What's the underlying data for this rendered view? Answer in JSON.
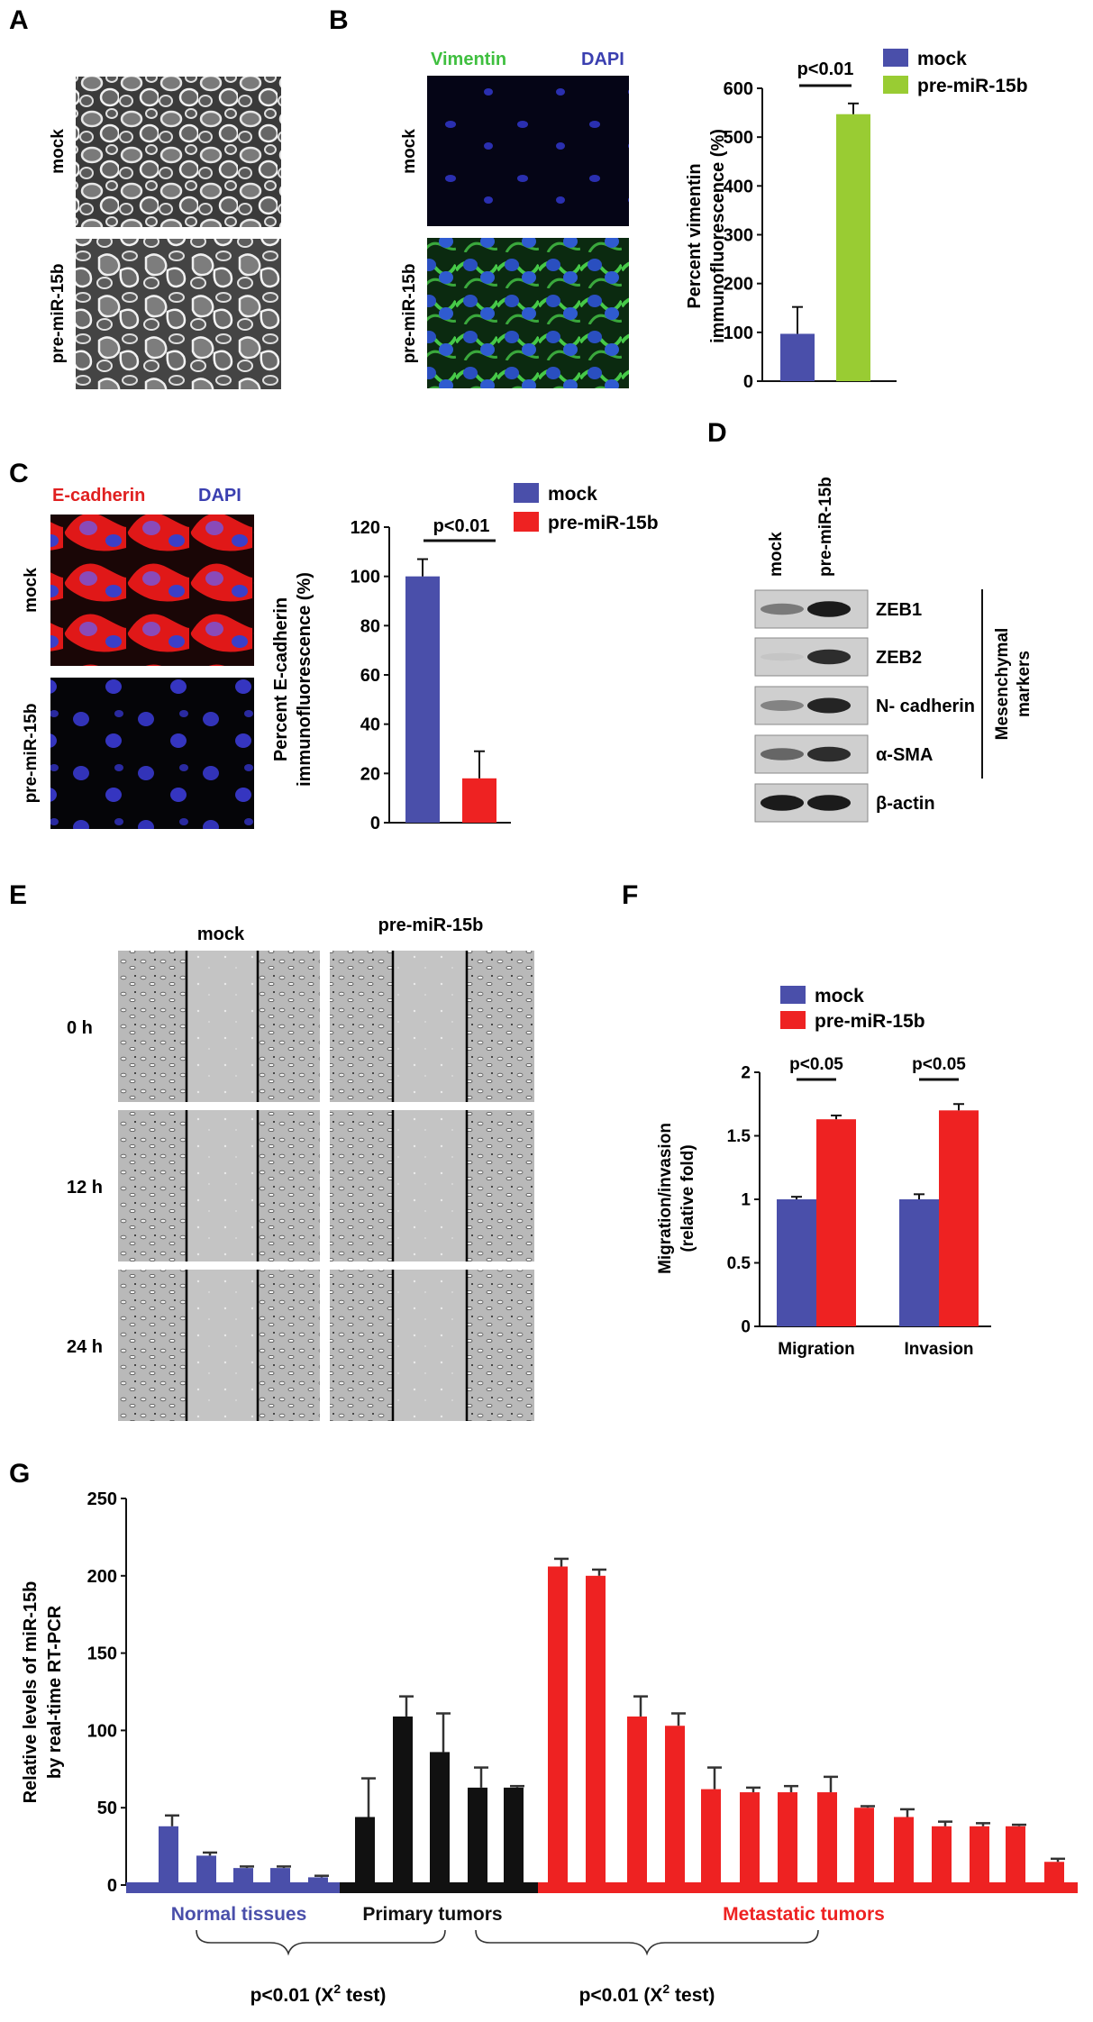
{
  "panels": {
    "A": {
      "letter": "A",
      "rows": [
        "mock",
        "pre-miR-15b"
      ]
    },
    "B": {
      "letter": "B",
      "stain_green": "Vimentin",
      "stain_blue": "DAPI",
      "rows": [
        "mock",
        "pre-miR-15b"
      ],
      "colors": {
        "mock": "#4a4faa",
        "treated": "#99cc33"
      }
    },
    "C": {
      "letter": "C",
      "stain_red": "E-cadherin",
      "stain_blue": "DAPI",
      "rows": [
        "mock",
        "pre-miR-15b"
      ],
      "colors": {
        "mock": "#4a4faa",
        "treated": "#ee2222"
      }
    },
    "D": {
      "letter": "D",
      "lanes": [
        "mock",
        "pre-miR-15b"
      ],
      "bands": [
        "ZEB1",
        "ZEB2",
        "N- cadherin",
        "α-SMA",
        "β-actin"
      ],
      "bracket_label_line1": "Mesenchymal",
      "bracket_label_line2": "markers"
    },
    "E": {
      "letter": "E",
      "columns": [
        "mock",
        "pre-miR-15b"
      ],
      "rows": [
        "0 h",
        "12 h",
        "24 h"
      ]
    },
    "F": {
      "letter": "F",
      "colors": {
        "mock": "#4a4faa",
        "treated": "#ee2222"
      }
    },
    "G": {
      "letter": "G",
      "group_labels": [
        "Normal tissues",
        "Primary tumors",
        "Metastatic tumors"
      ],
      "group_colors": [
        "#4a4faa",
        "#111111",
        "#ee2222"
      ],
      "test_label_1": "p<0.01 (X",
      "test_label_2": "p<0.01 (X",
      "test_sup": "2",
      "test_suffix": " test)"
    }
  },
  "chart_data": [
    {
      "id": "B",
      "type": "bar",
      "categories": [
        "mock",
        "pre-miR-15b"
      ],
      "values": [
        97,
        547
      ],
      "errors": [
        55,
        22
      ],
      "ylabel": "Percent vimentin immunofluorescence (%)",
      "ylim": [
        0,
        600
      ],
      "yticks": [
        0,
        100,
        200,
        300,
        400,
        500,
        600
      ],
      "legend": [
        "mock",
        "pre-miR-15b"
      ],
      "legend_position": "top-right",
      "annotation": "p<0.01"
    },
    {
      "id": "C",
      "type": "bar",
      "categories": [
        "mock",
        "pre-miR-15b"
      ],
      "values": [
        100,
        18
      ],
      "errors": [
        7,
        11
      ],
      "ylabel": "Percent E-cadherin immunofluorescence (%)",
      "ylim": [
        0,
        120
      ],
      "yticks": [
        0,
        20,
        40,
        60,
        80,
        100,
        120
      ],
      "legend": [
        "mock",
        "pre-miR-15b"
      ],
      "legend_position": "top-right",
      "annotation": "p<0.01"
    },
    {
      "id": "F",
      "type": "bar",
      "categories": [
        "Migration",
        "Invasion"
      ],
      "series": [
        {
          "name": "mock",
          "values": [
            1.0,
            1.0
          ],
          "errors": [
            0.02,
            0.04
          ]
        },
        {
          "name": "pre-miR-15b",
          "values": [
            1.63,
            1.7
          ],
          "errors": [
            0.03,
            0.05
          ]
        }
      ],
      "ylabel": "Migration/invasion (relative fold)",
      "ylim": [
        0,
        2
      ],
      "yticks": [
        "0",
        "0.5",
        "1",
        "1.5",
        "2"
      ],
      "legend_position": "top-left",
      "annotations": [
        "p<0.05",
        "p<0.05"
      ]
    },
    {
      "id": "G",
      "type": "bar",
      "ylabel": "Relative levels of miR-15b by real-time RT-PCR",
      "ylim": [
        0,
        250
      ],
      "yticks": [
        0,
        50,
        100,
        150,
        200,
        250
      ],
      "groups": [
        "Normal tissues",
        "Primary tumors",
        "Metastatic tumors"
      ],
      "values": [
        38,
        19,
        11,
        11,
        5,
        44,
        109,
        86,
        63,
        63,
        206,
        200,
        109,
        103,
        62,
        60,
        60,
        60,
        50,
        44,
        38,
        38,
        38,
        15
      ],
      "errors": [
        7,
        2,
        1,
        1,
        1,
        25,
        13,
        25,
        13,
        1,
        5,
        4,
        13,
        8,
        14,
        3,
        4,
        10,
        1,
        5,
        3,
        2,
        1,
        2
      ],
      "group_index": [
        0,
        0,
        0,
        0,
        0,
        1,
        1,
        1,
        1,
        1,
        2,
        2,
        2,
        2,
        2,
        2,
        2,
        2,
        2,
        2,
        2,
        2,
        2,
        2
      ]
    }
  ]
}
